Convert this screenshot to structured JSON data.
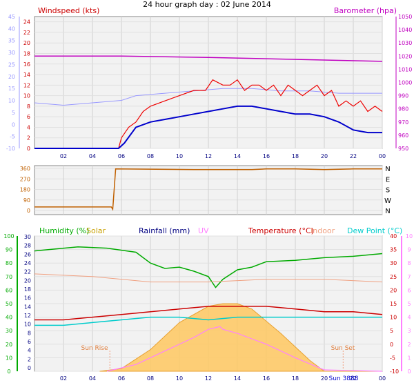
{
  "title": "24 hour graph day : 02 June 2014",
  "colors": {
    "windspeed": "#cc0000",
    "barometer": "#c000c0",
    "windgust": "#ee0000",
    "wind_avg": "#0000cc",
    "temp_axis": "#9999ff",
    "direction": "#c06000",
    "humidity": "#00aa00",
    "solar": "#c8a000",
    "rainfall": "#000080",
    "uv": "#ff80ff",
    "temperature": "#cc0000",
    "indoor": "#f0a080",
    "dewpoint": "#00cccc"
  },
  "chart_data": [
    {
      "type": "line",
      "ylabel": "Windspeed (kts)",
      "y2label": "Barometer (hpa)",
      "x_ticks": [
        "02",
        "04",
        "06",
        "08",
        "10",
        "12",
        "14",
        "16",
        "18",
        "20",
        "22",
        "00"
      ],
      "x_range_hours": [
        0,
        24
      ],
      "y_left_range": [
        0,
        25
      ],
      "y_left_ticks": [
        "0",
        "2",
        "4",
        "6",
        "8",
        "10",
        "12",
        "14",
        "16",
        "18",
        "20",
        "22",
        "24"
      ],
      "y_far_left_ticks": [
        "-10",
        "-5",
        "0",
        "5",
        "10",
        "15",
        "20",
        "25",
        "30",
        "35",
        "40",
        "45"
      ],
      "y_right_range": [
        950,
        1050
      ],
      "y_right_ticks": [
        "950",
        "960",
        "970",
        "980",
        "990",
        "1000",
        "1010",
        "1020",
        "1030",
        "1040",
        "1050"
      ],
      "series": [
        {
          "key": "barometer",
          "axis": "right",
          "x": [
            0,
            6,
            12,
            16,
            20,
            24
          ],
          "y": [
            1020,
            1020,
            1019,
            1018,
            1017,
            1016
          ]
        },
        {
          "key": "temp_axis",
          "axis": "far_left",
          "x": [
            0,
            2,
            4,
            6,
            7,
            9,
            11,
            13,
            15,
            17,
            19,
            21,
            23,
            24
          ],
          "y": [
            9,
            8,
            9,
            10,
            12,
            13,
            14,
            15,
            15,
            14,
            14,
            13,
            13,
            13
          ]
        },
        {
          "key": "gust",
          "axis": "left",
          "x": [
            0,
            5.8,
            6.0,
            6.5,
            7,
            7.5,
            8,
            9,
            10,
            11,
            11.8,
            12.3,
            13,
            13.5,
            14,
            14.5,
            15,
            15.5,
            16,
            16.5,
            17,
            17.5,
            18,
            18.5,
            19,
            19.5,
            20,
            20.5,
            21,
            21.5,
            22,
            22.5,
            23,
            23.5,
            24
          ],
          "y": [
            0,
            0,
            2,
            4,
            5,
            7,
            8,
            9,
            10,
            11,
            11,
            13,
            12,
            12,
            13,
            11,
            12,
            12,
            11,
            12,
            10,
            12,
            11,
            10,
            11,
            12,
            10,
            11,
            8,
            9,
            8,
            9,
            7,
            8,
            7
          ]
        },
        {
          "key": "avg",
          "axis": "left",
          "x": [
            0,
            5.8,
            6.2,
            7,
            8,
            9,
            10,
            11,
            12,
            13,
            14,
            15,
            16,
            17,
            18,
            19,
            20,
            21,
            22,
            23,
            24
          ],
          "y": [
            0,
            0,
            1,
            4,
            5,
            5.5,
            6,
            6.5,
            7,
            7.5,
            8,
            8,
            7.5,
            7,
            6.5,
            6.5,
            6,
            5,
            3.5,
            3,
            3
          ]
        }
      ]
    },
    {
      "type": "line",
      "ylabel": "Wind direction",
      "x_range_hours": [
        0,
        24
      ],
      "y_range": [
        0,
        360
      ],
      "y_ticks": [
        "0",
        "90",
        "180",
        "270",
        "360"
      ],
      "y_right_labels": [
        "N",
        "W",
        "S",
        "E",
        "N"
      ],
      "series": [
        {
          "key": "direction",
          "x": [
            0,
            5.3,
            5.4,
            5.6,
            11,
            15,
            16,
            18,
            20,
            22,
            24
          ],
          "y": [
            30,
            30,
            10,
            355,
            350,
            350,
            355,
            355,
            350,
            355,
            355
          ]
        }
      ]
    },
    {
      "type": "line",
      "legend": [
        "Humidity (%)",
        "Solar",
        "Rainfall (mm)",
        "UV",
        "Temperature (°C)",
        "Indoor",
        "Dew Point (°C)"
      ],
      "x_ticks": [
        "02",
        "04",
        "06",
        "08",
        "10",
        "12",
        "14",
        "16",
        "18",
        "20",
        "22",
        "00"
      ],
      "x_range_hours": [
        0,
        24
      ],
      "y_humidity_ticks": [
        "0",
        "10",
        "20",
        "30",
        "40",
        "50",
        "60",
        "70",
        "80",
        "90",
        "100"
      ],
      "y_rain_ticks": [
        "0",
        "2",
        "4",
        "6",
        "8",
        "10",
        "12",
        "14",
        "16",
        "18",
        "20",
        "22",
        "24",
        "26",
        "28",
        "30"
      ],
      "y_temp_ticks": [
        "-10",
        "-5",
        "0",
        "5",
        "10",
        "15",
        "20",
        "25",
        "30",
        "35",
        "40"
      ],
      "y_uv_ticks": [
        "0",
        "1",
        "2",
        "3",
        "4",
        "5",
        "6",
        "7",
        "8",
        "9",
        "10"
      ],
      "annotations": [
        "Sun Rise",
        "Sun Set",
        "Sun 3888"
      ],
      "series": [
        {
          "key": "humidity",
          "axis": "humidity",
          "x": [
            0,
            1,
            3,
            5,
            7,
            8,
            9,
            10,
            11,
            12,
            12.5,
            13,
            14,
            15,
            16,
            18,
            20,
            22,
            24
          ],
          "y": [
            89,
            90,
            92,
            91,
            88,
            80,
            76,
            77,
            74,
            70,
            62,
            68,
            75,
            77,
            81,
            82,
            84,
            85,
            87
          ]
        },
        {
          "key": "indoor",
          "axis": "temp",
          "x": [
            0,
            4,
            8,
            12,
            16,
            20,
            24
          ],
          "y": [
            26,
            25,
            23,
            23,
            24,
            24,
            23
          ]
        },
        {
          "key": "temperature",
          "axis": "temp",
          "x": [
            0,
            2,
            4,
            6,
            8,
            10,
            12,
            14,
            16,
            18,
            20,
            22,
            24
          ],
          "y": [
            9,
            9,
            10,
            11,
            12,
            13,
            14,
            14,
            14,
            13,
            12,
            12,
            11
          ]
        },
        {
          "key": "dewpoint",
          "axis": "temp",
          "x": [
            0,
            2,
            4,
            6,
            8,
            10,
            12,
            14,
            16,
            18,
            20,
            22,
            24
          ],
          "y": [
            7,
            7,
            8,
            9,
            10,
            10,
            9,
            10,
            10,
            10,
            10,
            10,
            10
          ]
        },
        {
          "key": "solar",
          "axis": "temp",
          "x": [
            4.5,
            6,
            8,
            10,
            12,
            13,
            14,
            15,
            17,
            19,
            20,
            24
          ],
          "y": [
            -10,
            -9,
            -2,
            8,
            14,
            15,
            15,
            13,
            4,
            -6,
            -10,
            -10
          ]
        },
        {
          "key": "uv",
          "axis": "uv",
          "x": [
            5,
            7,
            9,
            11,
            12,
            12.8,
            13,
            14,
            15,
            16,
            18,
            20,
            24
          ],
          "y": [
            0,
            0.5,
            1.5,
            2.5,
            3.1,
            3.3,
            3.1,
            2.8,
            2.4,
            2,
            1,
            0.1,
            0
          ]
        }
      ]
    }
  ]
}
